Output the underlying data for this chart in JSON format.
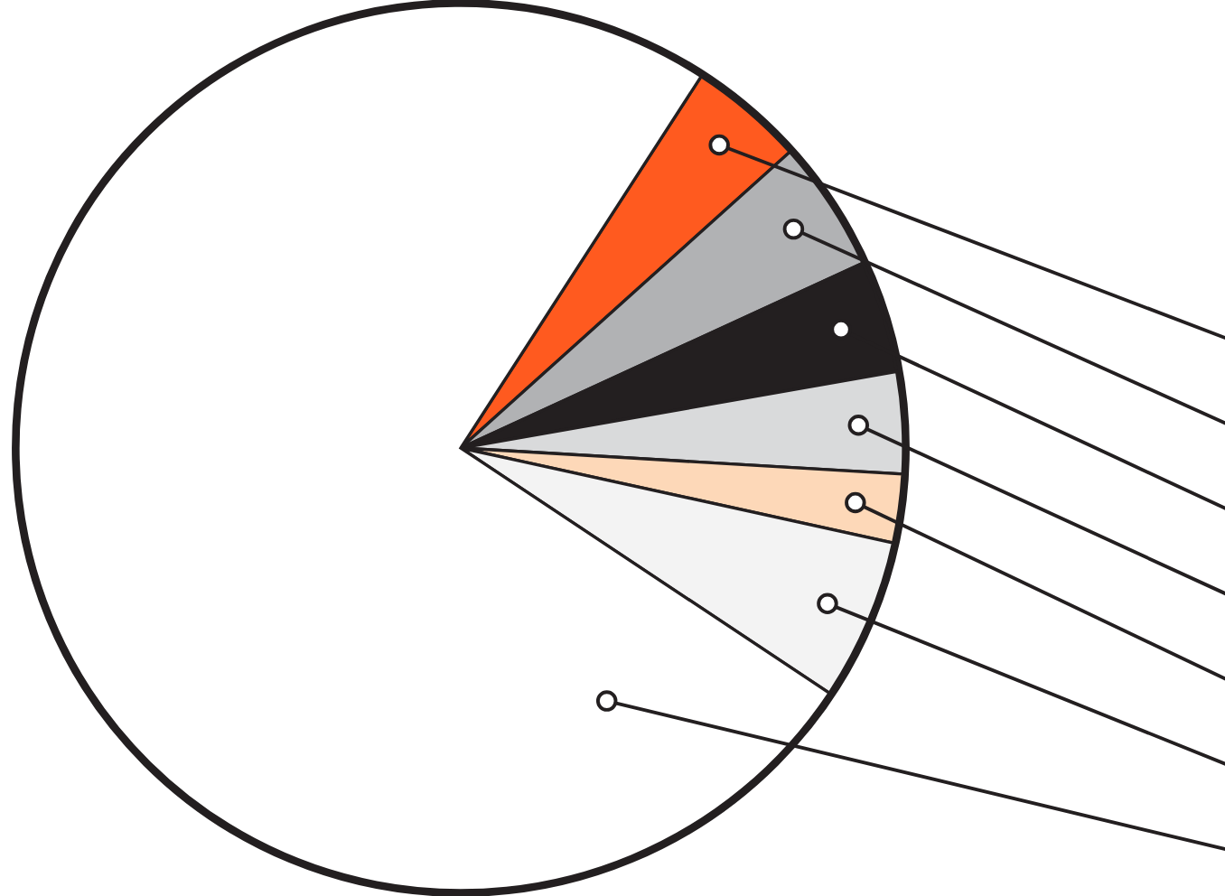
{
  "chart_data": {
    "type": "pie",
    "categories": [
      null,
      null,
      null,
      null,
      null,
      null,
      null
    ],
    "values": [
      4.2,
      4.8,
      4.1,
      3.7,
      2.5,
      5.9,
      74.8
    ],
    "colors": [
      "#ff5a1f",
      "#b1b2b4",
      "#231f20",
      "#d9dadb",
      "#fdd8b8",
      "#f3f3f3",
      "#ffffff"
    ]
  }
}
